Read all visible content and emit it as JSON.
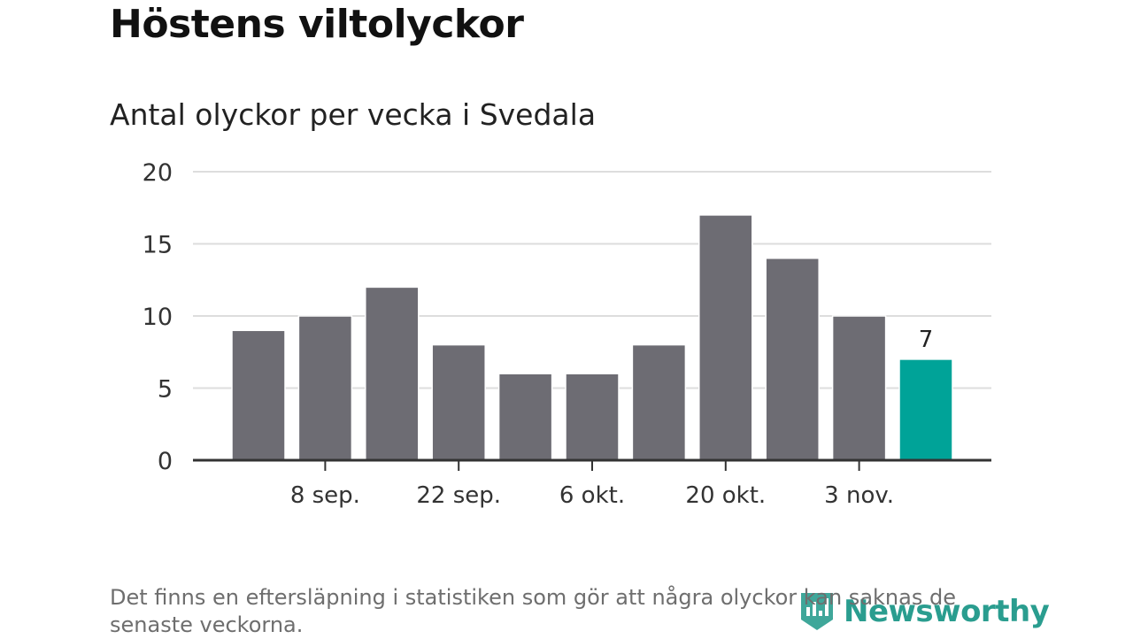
{
  "header": {
    "title": "Höstens viltolyckor",
    "subtitle": "Antal olyckor per vecka i Svedala"
  },
  "chart_data": {
    "type": "bar",
    "title": "Antal olyckor per vecka i Svedala",
    "xlabel": "",
    "ylabel": "",
    "ylim": [
      0,
      20
    ],
    "yticks": [
      0,
      5,
      10,
      15,
      20
    ],
    "values": [
      9,
      10,
      12,
      8,
      6,
      6,
      8,
      17,
      14,
      10,
      7
    ],
    "xticks": [
      {
        "index": 1,
        "label": "8 sep."
      },
      {
        "index": 3,
        "label": "22 sep."
      },
      {
        "index": 5,
        "label": "6 okt."
      },
      {
        "index": 7,
        "label": "20 okt."
      },
      {
        "index": 9,
        "label": "3 nov."
      }
    ],
    "highlight_index": 10,
    "highlight_label": "7",
    "grid": true,
    "colors": {
      "bar": "#6d6c73",
      "highlight": "#00a398",
      "grid": "#dddddd",
      "axis": "#333333"
    }
  },
  "footer": {
    "note": "Det finns en eftersläpning i statistiken som gör att några olyckor kan saknas de senaste veckorna.",
    "logo_text": "Newsworthy"
  }
}
